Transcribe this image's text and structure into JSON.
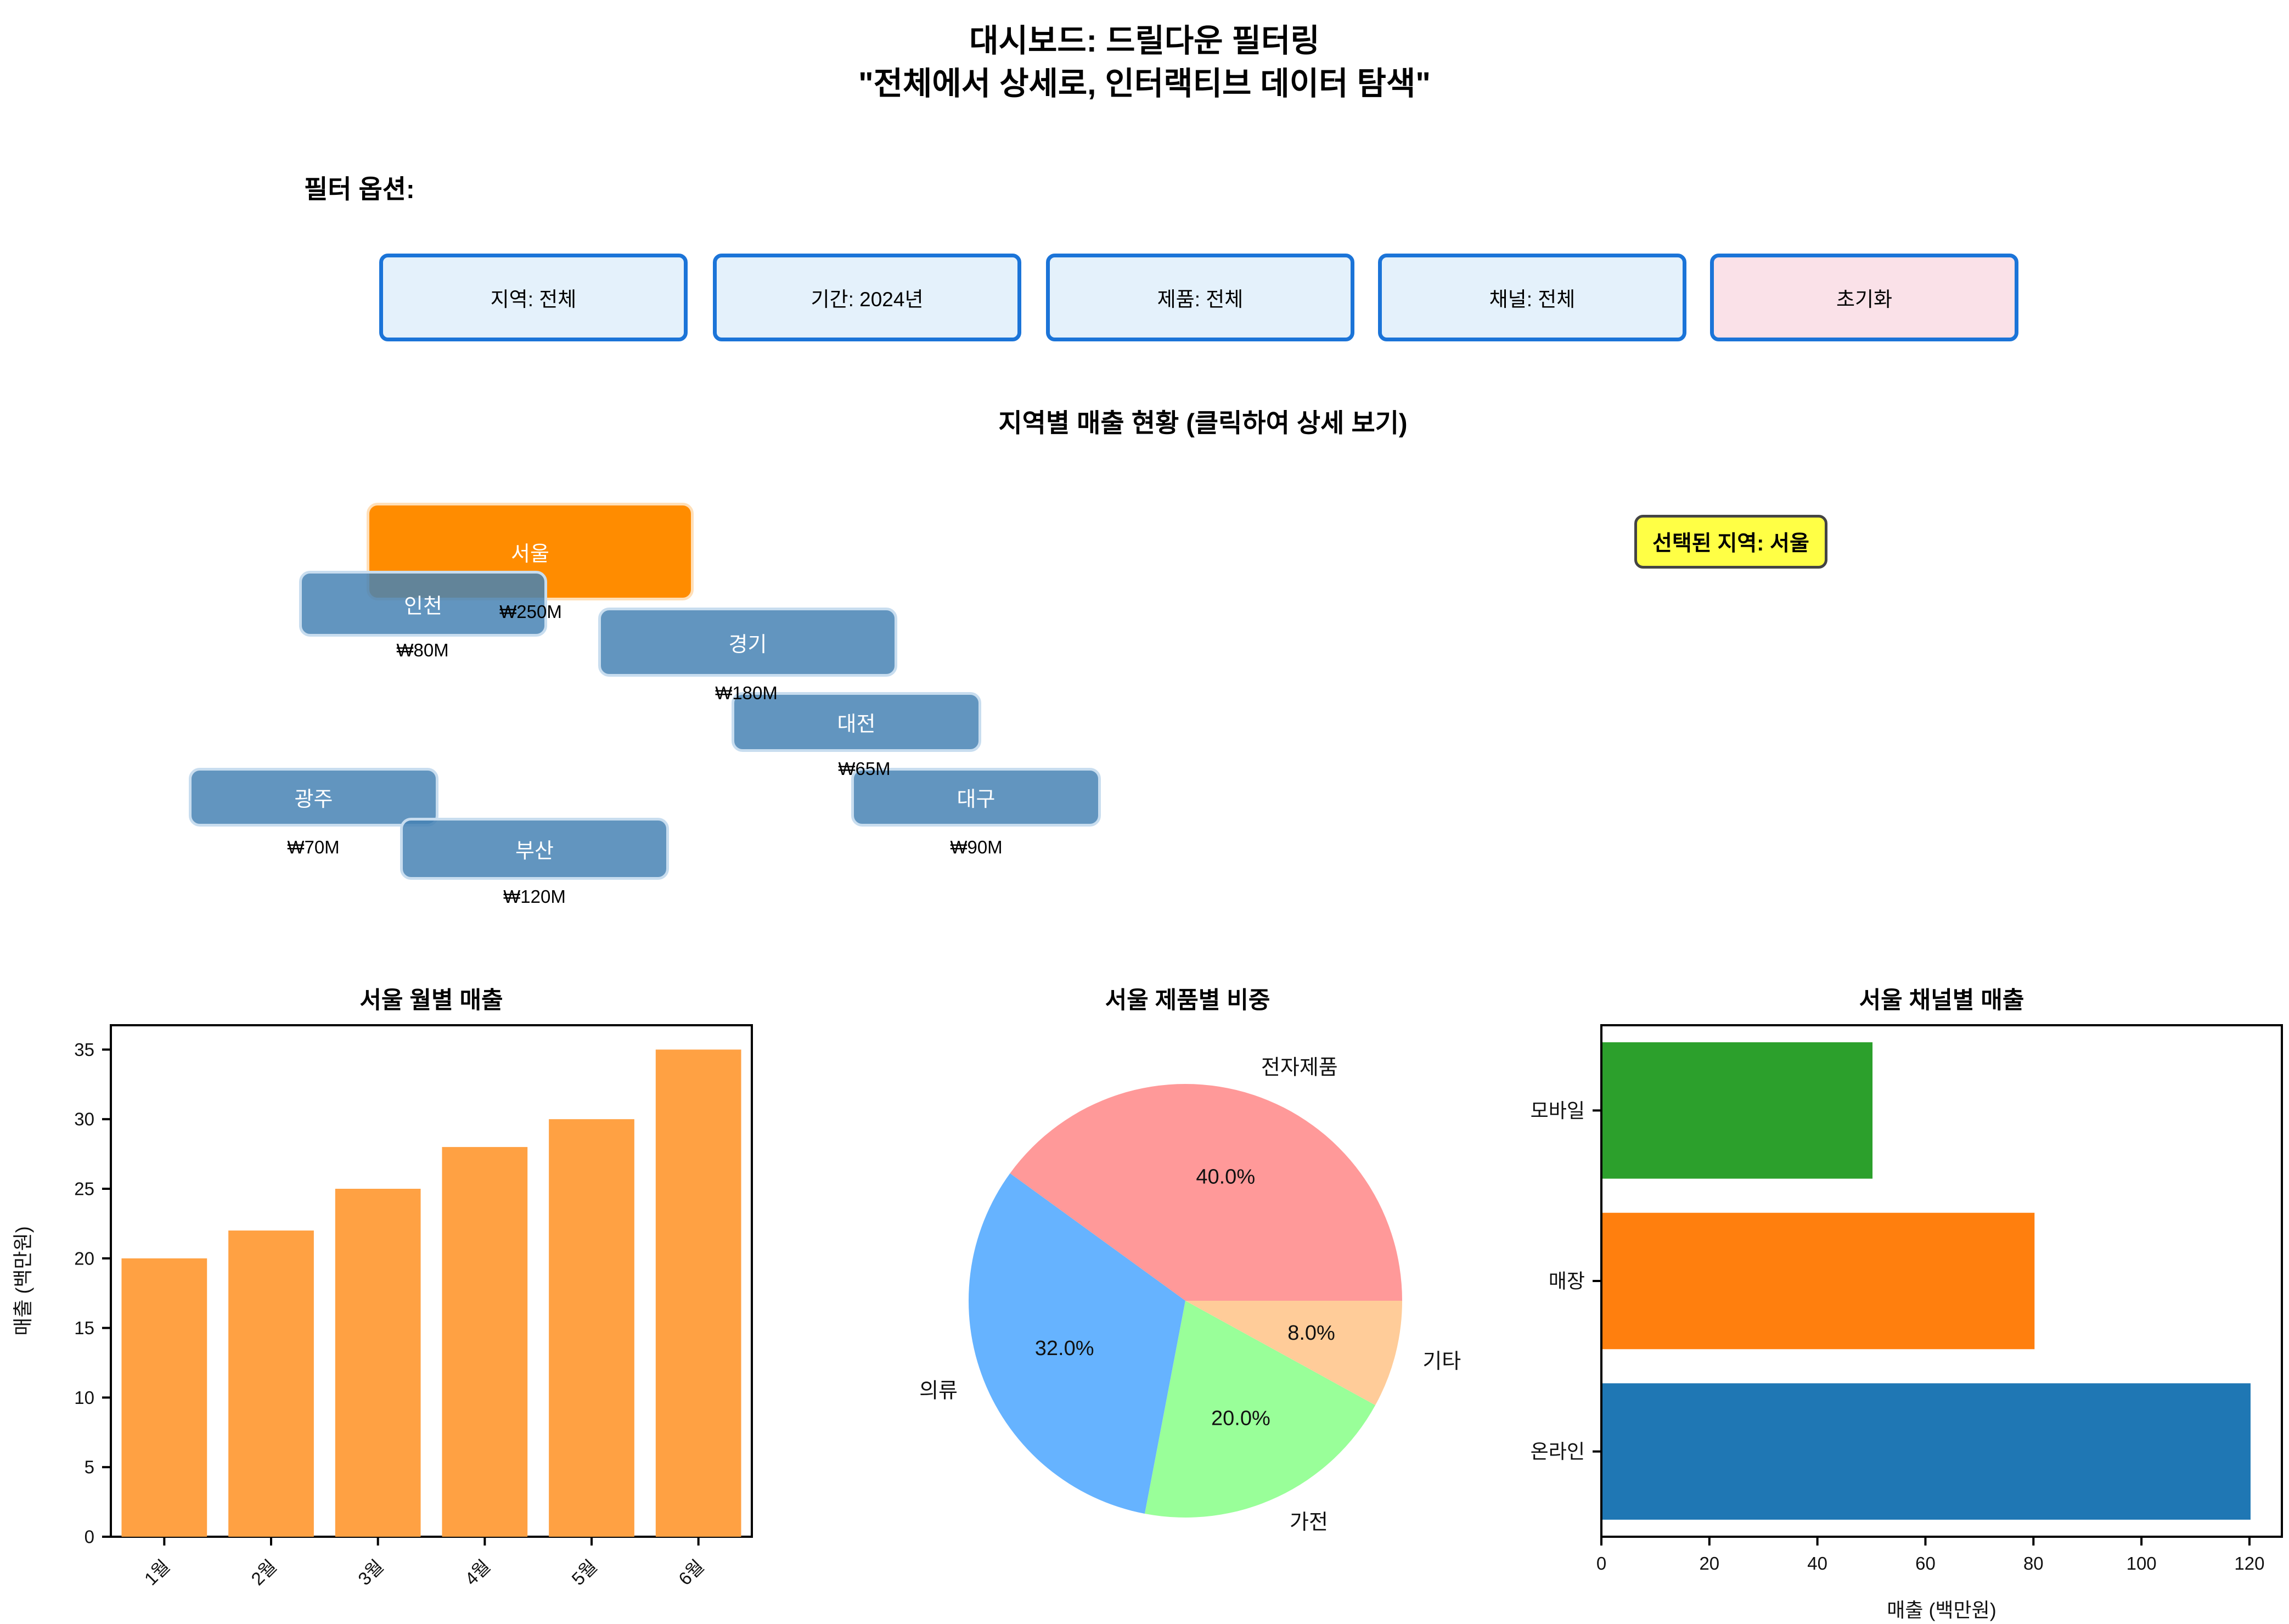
{
  "header": {
    "title_line1": "대시보드: 드릴다운 필터링",
    "title_line2": "\"전체에서 상세로, 인터랙티브 데이터 탐색\""
  },
  "filters": {
    "label": "필터 옵션:",
    "buttons": [
      {
        "label": "지역: 전체"
      },
      {
        "label": "기간: 2024년"
      },
      {
        "label": "제품: 전체"
      },
      {
        "label": "채널: 전체"
      },
      {
        "label": "초기화"
      }
    ]
  },
  "region_map": {
    "section_title": "지역별 매출 현황 (클릭하여 상세 보기)",
    "selected_badge": "선택된 지역: 서울",
    "regions": [
      {
        "name": "서울",
        "value": "₩250M",
        "selected": true
      },
      {
        "name": "인천",
        "value": "₩80M",
        "selected": false
      },
      {
        "name": "경기",
        "value": "₩180M",
        "selected": false
      },
      {
        "name": "대전",
        "value": "₩65M",
        "selected": false
      },
      {
        "name": "광주",
        "value": "₩70M",
        "selected": false
      },
      {
        "name": "대구",
        "value": "₩90M",
        "selected": false
      },
      {
        "name": "부산",
        "value": "₩120M",
        "selected": false
      }
    ]
  },
  "colors": {
    "selected_region": "#FF8C00",
    "region_blue": "rgba(70,130,180,0.85)",
    "filter_fill": "#E4F1FB",
    "filter_border": "#1B74D8",
    "reset_fill": "#FAE1E8",
    "badge_yellow": "#FFFF45",
    "monthly_bar": "#FFA143"
  },
  "chart_data": [
    {
      "type": "bar",
      "title": "서울 월별 매출",
      "categories": [
        "1월",
        "2월",
        "3월",
        "4월",
        "5월",
        "6월"
      ],
      "values": [
        20,
        22,
        25,
        28,
        30,
        35
      ],
      "ylabel": "매출 (백만원)",
      "xlabel": "",
      "yticks": [
        0,
        5,
        10,
        15,
        20,
        25,
        30,
        35
      ],
      "ylim": [
        0,
        36.75
      ],
      "bar_color": "#FFA143",
      "grid": false,
      "tick_rotation": 45
    },
    {
      "type": "pie",
      "title": "서울 제품별 비중",
      "labels": [
        "전자제품",
        "의류",
        "가전",
        "기타"
      ],
      "values": [
        40,
        32,
        20,
        8
      ],
      "percent_labels": [
        "40.0%",
        "32.0%",
        "20.0%",
        "8.0%"
      ],
      "colors": [
        "#ff9999",
        "#66b3ff",
        "#99ff99",
        "#ffcc99"
      ],
      "start_angle": 0,
      "direction": "counterclockwise"
    },
    {
      "type": "hbar",
      "title": "서울 채널별 매출",
      "categories": [
        "모바일",
        "매장",
        "온라인"
      ],
      "values": [
        50,
        80,
        120
      ],
      "colors": [
        "#2ca02c",
        "#ff7f0e",
        "#1f77b4"
      ],
      "xlabel": "매출 (백만원)",
      "xticks": [
        0,
        20,
        40,
        60,
        80,
        100,
        120
      ],
      "xlim": [
        0,
        126
      ],
      "grid": false
    }
  ]
}
